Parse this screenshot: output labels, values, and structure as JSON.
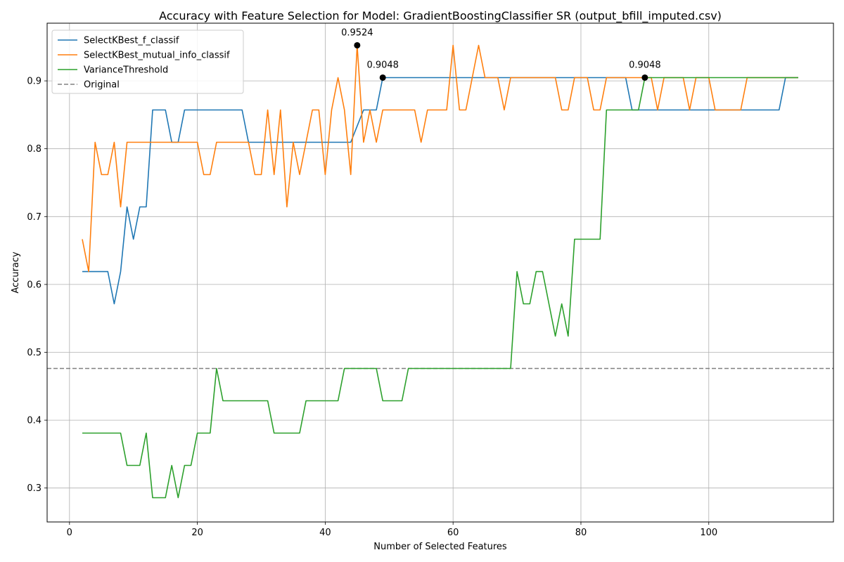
{
  "chart_data": {
    "type": "line",
    "title": "Accuracy with Feature Selection for Model: GradientBoostingClassifier SR (output_bfill_imputed.csv)",
    "xlabel": "Number of Selected Features",
    "ylabel": "Accuracy",
    "xlim": [
      -3.5,
      119.5
    ],
    "ylim": [
      0.25,
      0.985
    ],
    "xticks": [
      0,
      20,
      40,
      60,
      80,
      100
    ],
    "yticks": [
      0.3,
      0.4,
      0.5,
      0.6,
      0.7,
      0.8,
      0.9
    ],
    "xtick_labels": [
      "0",
      "20",
      "40",
      "60",
      "80",
      "100"
    ],
    "ytick_labels": [
      "0.3",
      "0.4",
      "0.5",
      "0.6",
      "0.7",
      "0.8",
      "0.9"
    ],
    "grid": true,
    "legend_position": "upper-left",
    "series": [
      {
        "name": "SelectKBest_f_classif",
        "color": "#1f77b4",
        "style": "solid",
        "points": [
          [
            2,
            0.619
          ],
          [
            3,
            0.619
          ],
          [
            6,
            0.619
          ],
          [
            7,
            0.5714
          ],
          [
            8,
            0.619
          ],
          [
            9,
            0.7143
          ],
          [
            10,
            0.6667
          ],
          [
            11,
            0.7143
          ],
          [
            12,
            0.7143
          ],
          [
            13,
            0.8571
          ],
          [
            15,
            0.8571
          ],
          [
            16,
            0.8095
          ],
          [
            17,
            0.8095
          ],
          [
            18,
            0.8571
          ],
          [
            27,
            0.8571
          ],
          [
            28,
            0.8095
          ],
          [
            44,
            0.8095
          ],
          [
            46,
            0.8571
          ],
          [
            48,
            0.8571
          ],
          [
            49,
            0.9048
          ],
          [
            87,
            0.9048
          ],
          [
            88,
            0.8571
          ],
          [
            111,
            0.8571
          ],
          [
            112,
            0.9048
          ],
          [
            114,
            0.9048
          ]
        ]
      },
      {
        "name": "SelectKBest_mutual_info_classif",
        "color": "#ff7f0e",
        "style": "solid",
        "points": [
          [
            2,
            0.6667
          ],
          [
            3,
            0.619
          ],
          [
            4,
            0.8095
          ],
          [
            5,
            0.7619
          ],
          [
            6,
            0.7619
          ],
          [
            7,
            0.8095
          ],
          [
            8,
            0.7143
          ],
          [
            9,
            0.8095
          ],
          [
            20,
            0.8095
          ],
          [
            21,
            0.7619
          ],
          [
            22,
            0.7619
          ],
          [
            23,
            0.8095
          ],
          [
            28,
            0.8095
          ],
          [
            29,
            0.7619
          ],
          [
            30,
            0.7619
          ],
          [
            31,
            0.8571
          ],
          [
            32,
            0.7619
          ],
          [
            33,
            0.8571
          ],
          [
            34,
            0.7143
          ],
          [
            35,
            0.8095
          ],
          [
            36,
            0.7619
          ],
          [
            37,
            0.8095
          ],
          [
            38,
            0.8571
          ],
          [
            39,
            0.8571
          ],
          [
            40,
            0.7619
          ],
          [
            41,
            0.8571
          ],
          [
            42,
            0.9048
          ],
          [
            43,
            0.8571
          ],
          [
            44,
            0.7619
          ],
          [
            45,
            0.9524
          ],
          [
            46,
            0.8095
          ],
          [
            47,
            0.8571
          ],
          [
            48,
            0.8095
          ],
          [
            49,
            0.8571
          ],
          [
            54,
            0.8571
          ],
          [
            55,
            0.8095
          ],
          [
            56,
            0.8571
          ],
          [
            59,
            0.8571
          ],
          [
            60,
            0.9524
          ],
          [
            61,
            0.8571
          ],
          [
            62,
            0.8571
          ],
          [
            64,
            0.9524
          ],
          [
            65,
            0.9048
          ],
          [
            67,
            0.9048
          ],
          [
            68,
            0.8571
          ],
          [
            69,
            0.9048
          ],
          [
            76,
            0.9048
          ],
          [
            77,
            0.8571
          ],
          [
            78,
            0.8571
          ],
          [
            79,
            0.9048
          ],
          [
            81,
            0.9048
          ],
          [
            82,
            0.8571
          ],
          [
            83,
            0.8571
          ],
          [
            84,
            0.9048
          ],
          [
            91,
            0.9048
          ],
          [
            92,
            0.8571
          ],
          [
            93,
            0.9048
          ],
          [
            96,
            0.9048
          ],
          [
            97,
            0.8571
          ],
          [
            98,
            0.9048
          ],
          [
            100,
            0.9048
          ],
          [
            101,
            0.8571
          ],
          [
            105,
            0.8571
          ],
          [
            106,
            0.9048
          ],
          [
            114,
            0.9048
          ]
        ]
      },
      {
        "name": "VarianceThreshold",
        "color": "#2ca02c",
        "style": "solid",
        "points": [
          [
            2,
            0.381
          ],
          [
            8,
            0.381
          ],
          [
            9,
            0.3333
          ],
          [
            11,
            0.3333
          ],
          [
            12,
            0.381
          ],
          [
            13,
            0.2857
          ],
          [
            15,
            0.2857
          ],
          [
            16,
            0.3333
          ],
          [
            17,
            0.2857
          ],
          [
            18,
            0.3333
          ],
          [
            19,
            0.3333
          ],
          [
            20,
            0.381
          ],
          [
            22,
            0.381
          ],
          [
            23,
            0.4762
          ],
          [
            24,
            0.4286
          ],
          [
            31,
            0.4286
          ],
          [
            32,
            0.381
          ],
          [
            36,
            0.381
          ],
          [
            37,
            0.4286
          ],
          [
            42,
            0.4286
          ],
          [
            43,
            0.4762
          ],
          [
            48,
            0.4762
          ],
          [
            49,
            0.4286
          ],
          [
            52,
            0.4286
          ],
          [
            53,
            0.4762
          ],
          [
            69,
            0.4762
          ],
          [
            70,
            0.619
          ],
          [
            71,
            0.5714
          ],
          [
            72,
            0.5714
          ],
          [
            73,
            0.619
          ],
          [
            74,
            0.619
          ],
          [
            76,
            0.5238
          ],
          [
            77,
            0.5714
          ],
          [
            78,
            0.5238
          ],
          [
            79,
            0.6667
          ],
          [
            83,
            0.6667
          ],
          [
            84,
            0.8571
          ],
          [
            89,
            0.8571
          ],
          [
            90,
            0.9048
          ],
          [
            114,
            0.9048
          ]
        ]
      }
    ],
    "reference_line": {
      "name": "Original",
      "value": 0.4762,
      "color": "#808080",
      "style": "dashed"
    },
    "annotations": [
      {
        "x": 45,
        "y": 0.9524,
        "label": "0.9524"
      },
      {
        "x": 49,
        "y": 0.9048,
        "label": "0.9048"
      },
      {
        "x": 90,
        "y": 0.9048,
        "label": "0.9048"
      }
    ]
  }
}
